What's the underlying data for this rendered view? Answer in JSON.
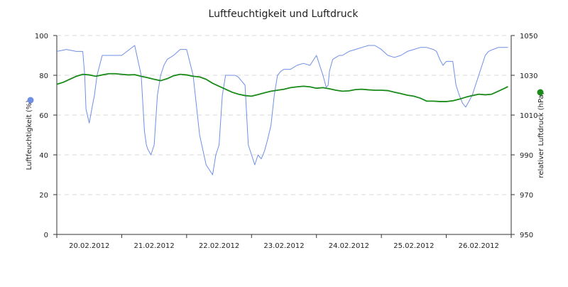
{
  "chart_data": {
    "type": "line",
    "title": "Luftfeuchtigkeit und Luftdruck",
    "x_categories": [
      "20.02.2012",
      "21.02.2012",
      "22.02.2012",
      "23.02.2012",
      "24.02.2012",
      "25.02.2012",
      "26.02.2012"
    ],
    "x_range": [
      0,
      7
    ],
    "grid": true,
    "y_left": {
      "label": "Luftfeuchtigkeit (%)",
      "min": 0,
      "max": 100,
      "ticks": [
        0,
        20,
        40,
        60,
        80,
        100
      ]
    },
    "y_right": {
      "label": "relativer Luftdruck (hPa)",
      "min": 950,
      "max": 1050,
      "ticks": [
        950,
        970,
        990,
        1010,
        1030,
        1050
      ]
    },
    "series": [
      {
        "axis": "left",
        "color": "#6f8fe6",
        "marker_color": "#6f8fe6",
        "x": [
          0.0,
          0.15,
          0.3,
          0.4,
          0.43,
          0.45,
          0.5,
          0.55,
          0.58,
          0.62,
          0.7,
          0.8,
          0.85,
          0.9,
          1.0,
          1.2,
          1.3,
          1.35,
          1.38,
          1.4,
          1.45,
          1.5,
          1.55,
          1.6,
          1.65,
          1.7,
          1.8,
          1.9,
          2.0,
          2.1,
          2.2,
          2.3,
          2.4,
          2.45,
          2.5,
          2.55,
          2.6,
          2.65,
          2.7,
          2.75,
          2.8,
          2.9,
          2.95,
          3.0,
          3.05,
          3.1,
          3.15,
          3.2,
          3.25,
          3.3,
          3.35,
          3.4,
          3.45,
          3.5,
          3.55,
          3.6,
          3.7,
          3.8,
          3.9,
          4.0,
          4.1,
          4.15,
          4.18,
          4.2,
          4.25,
          4.3,
          4.35,
          4.38,
          4.4,
          4.5,
          4.6,
          4.7,
          4.8,
          4.9,
          5.0,
          5.1,
          5.2,
          5.3,
          5.4,
          5.5,
          5.6,
          5.7,
          5.8,
          5.85,
          5.9,
          5.95,
          6.0,
          6.1,
          6.15,
          6.2,
          6.25,
          6.3,
          6.35,
          6.4,
          6.5,
          6.6,
          6.65,
          6.72,
          6.8,
          6.9,
          6.95
        ],
        "values": [
          92,
          93,
          92,
          92,
          80,
          63,
          56,
          65,
          70,
          80,
          90,
          90,
          90,
          90,
          90,
          95,
          80,
          52,
          45,
          43,
          40,
          45,
          70,
          80,
          85,
          88,
          90,
          93,
          93,
          80,
          50,
          35,
          30,
          40,
          45,
          70,
          80,
          80,
          80,
          80,
          79,
          75,
          45,
          40,
          35,
          40,
          38,
          42,
          48,
          55,
          70,
          80,
          82,
          83,
          83,
          83,
          85,
          86,
          85,
          90,
          80,
          74,
          75,
          82,
          88,
          89,
          90,
          90,
          90,
          92,
          93,
          94,
          95,
          95,
          93,
          90,
          89,
          90,
          92,
          93,
          94,
          94,
          93,
          92,
          88,
          85,
          87,
          87,
          75,
          70,
          66,
          64,
          67,
          70,
          80,
          90,
          92,
          93,
          94,
          94,
          94
        ]
      },
      {
        "axis": "right",
        "color": "#1a8a1a",
        "marker_color": "#1a8a1a",
        "x": [
          0.0,
          0.1,
          0.2,
          0.3,
          0.4,
          0.5,
          0.6,
          0.7,
          0.8,
          0.9,
          1.0,
          1.1,
          1.2,
          1.3,
          1.4,
          1.5,
          1.6,
          1.7,
          1.8,
          1.9,
          2.0,
          2.1,
          2.2,
          2.3,
          2.4,
          2.5,
          2.6,
          2.7,
          2.8,
          2.9,
          3.0,
          3.1,
          3.2,
          3.3,
          3.4,
          3.5,
          3.6,
          3.7,
          3.8,
          3.9,
          4.0,
          4.1,
          4.2,
          4.3,
          4.4,
          4.5,
          4.6,
          4.7,
          4.8,
          4.9,
          5.0,
          5.1,
          5.2,
          5.3,
          5.4,
          5.5,
          5.6,
          5.7,
          5.8,
          5.9,
          6.0,
          6.1,
          6.2,
          6.3,
          6.4,
          6.5,
          6.6,
          6.7,
          6.8,
          6.9,
          6.95
        ],
        "values": [
          1025.5,
          1026.5,
          1028,
          1029.5,
          1030.5,
          1030.2,
          1029.5,
          1030.2,
          1030.8,
          1030.8,
          1030.5,
          1030.2,
          1030.3,
          1029.5,
          1028.8,
          1028,
          1027.3,
          1028.3,
          1029.8,
          1030.5,
          1030.2,
          1029.5,
          1029.2,
          1028,
          1026,
          1024.5,
          1023,
          1021.5,
          1020.5,
          1019.8,
          1019.5,
          1020.3,
          1021.2,
          1022,
          1022.5,
          1023,
          1023.8,
          1024.2,
          1024.5,
          1024.2,
          1023.5,
          1023.8,
          1023.2,
          1022.5,
          1022,
          1022.2,
          1022.8,
          1023,
          1022.7,
          1022.5,
          1022.5,
          1022.3,
          1021.5,
          1020.8,
          1020,
          1019.5,
          1018.5,
          1017,
          1017,
          1016.8,
          1016.8,
          1017.2,
          1018,
          1019,
          1019.8,
          1020.5,
          1020.2,
          1020.5,
          1022,
          1023.5,
          1024.3
        ]
      }
    ]
  }
}
